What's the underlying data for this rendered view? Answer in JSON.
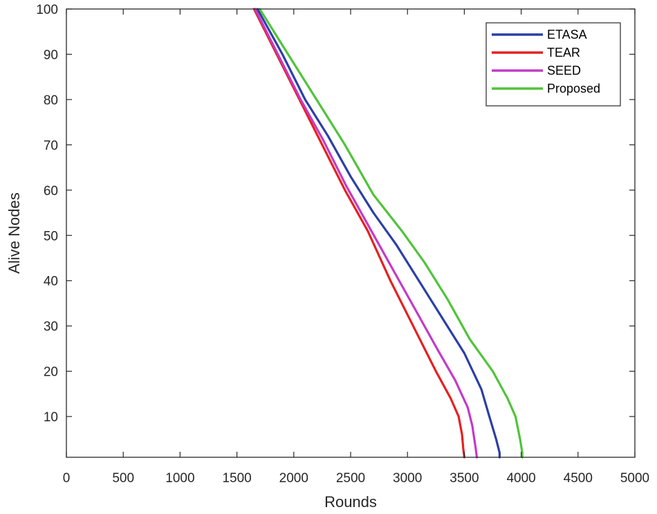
{
  "chart_data": {
    "type": "line",
    "title": "",
    "xlabel": "Rounds",
    "ylabel": "Alive Nodes",
    "xlim": [
      0,
      5000
    ],
    "ylim": [
      1,
      100
    ],
    "xticks": [
      0,
      500,
      1000,
      1500,
      2000,
      2500,
      3000,
      3500,
      4000,
      4500,
      5000
    ],
    "yticks": [
      10,
      20,
      30,
      40,
      50,
      60,
      70,
      80,
      90,
      100
    ],
    "grid": false,
    "legend_position": "top-right",
    "series": [
      {
        "name": "ETASA",
        "color": "#2b3ea8",
        "x": [
          1680,
          1900,
          2100,
          2300,
          2500,
          2700,
          2900,
          3100,
          3300,
          3500,
          3650,
          3720,
          3780,
          3810,
          3810
        ],
        "y": [
          100,
          90,
          80,
          72,
          63,
          55,
          48,
          40,
          32,
          24,
          16,
          10,
          5,
          2,
          1
        ]
      },
      {
        "name": "TEAR",
        "color": "#e62020",
        "x": [
          1650,
          1850,
          2050,
          2250,
          2450,
          2650,
          2850,
          3050,
          3250,
          3380,
          3450,
          3480,
          3490,
          3500
        ],
        "y": [
          100,
          90,
          80,
          70,
          60,
          51,
          40,
          30,
          20,
          14,
          10,
          6,
          3,
          1
        ]
      },
      {
        "name": "SEED",
        "color": "#c33ac8",
        "x": [
          1660,
          1860,
          2060,
          2260,
          2460,
          2660,
          2860,
          3060,
          3260,
          3420,
          3530,
          3570,
          3600,
          3610
        ],
        "y": [
          100,
          90,
          80,
          71,
          61,
          52,
          43,
          34,
          25,
          18,
          12,
          8,
          3,
          1
        ]
      },
      {
        "name": "Proposed",
        "color": "#4fc43a",
        "x": [
          1700,
          1950,
          2200,
          2450,
          2700,
          2950,
          3150,
          3350,
          3550,
          3750,
          3880,
          3950,
          3990,
          4010,
          4010
        ],
        "y": [
          100,
          90,
          80,
          70,
          59,
          51,
          44,
          36,
          27,
          20,
          14,
          10,
          5,
          2,
          1
        ]
      }
    ]
  }
}
